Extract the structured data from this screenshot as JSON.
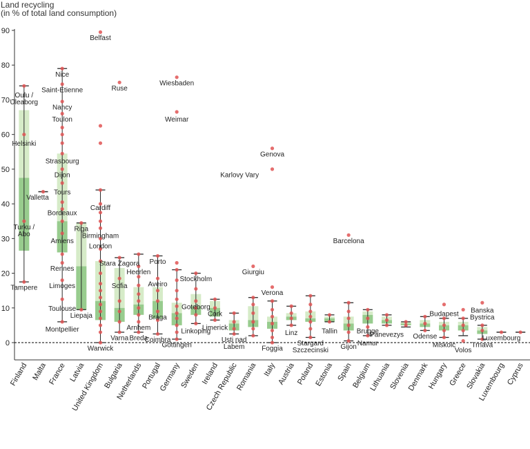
{
  "chart_data": {
    "type": "box",
    "ylabel": [
      "Land recycling",
      "(in % of total land consumption)"
    ],
    "ylim": [
      -5,
      90
    ],
    "yticks": [
      0,
      10,
      20,
      30,
      40,
      50,
      60,
      70,
      80,
      90
    ],
    "categories": [
      "Finland",
      "Malta",
      "France",
      "Latvia",
      "United Kingdom",
      "Bulgaria",
      "Netherlands",
      "Portugal",
      "Germany",
      "Sweden",
      "Ireland",
      "Czech Republic",
      "Romania",
      "Italy",
      "Austria",
      "Poland",
      "Estonia",
      "Spain",
      "Belgium",
      "Lithuania",
      "Slovenia",
      "Denmark",
      "Hungary",
      "Greece",
      "Slovakia",
      "Luxembourg",
      "Cyprus"
    ],
    "boxes": [
      {
        "min": 17.5,
        "q1": 26.5,
        "median": 47.5,
        "q3": 67,
        "max": 74
      },
      {
        "min": 43.5,
        "q1": 43.5,
        "median": 43.5,
        "q3": 43.5,
        "max": 43.5
      },
      {
        "min": 6,
        "q1": 26,
        "median": 35,
        "q3": 54.5,
        "max": 79
      },
      {
        "min": 9.5,
        "q1": 9.5,
        "median": 22,
        "q3": 34.5,
        "max": 34.5
      },
      {
        "min": 0,
        "q1": 6.5,
        "median": 12,
        "q3": 23.5,
        "max": 44
      },
      {
        "min": 3,
        "q1": 6,
        "median": 10,
        "q3": 21.5,
        "max": 24.5
      },
      {
        "min": 3,
        "q1": 8,
        "median": 11,
        "q3": 16,
        "max": 25.5
      },
      {
        "min": 2.5,
        "q1": 7,
        "median": 12,
        "q3": 16,
        "max": 25
      },
      {
        "min": 1,
        "q1": 5,
        "median": 8.5,
        "q3": 11.5,
        "max": 21
      },
      {
        "min": 5.5,
        "q1": 8,
        "median": 10.5,
        "q3": 14,
        "max": 20
      },
      {
        "min": 6.5,
        "q1": 7.5,
        "median": 10,
        "q3": 12,
        "max": 12.5
      },
      {
        "min": 2.5,
        "q1": 3.5,
        "median": 5.5,
        "q3": 6.5,
        "max": 8.5
      },
      {
        "min": 2,
        "q1": 4.5,
        "median": 6.5,
        "q3": 10.5,
        "max": 13
      },
      {
        "min": 0,
        "q1": 4,
        "median": 6,
        "q3": 7.5,
        "max": 12
      },
      {
        "min": 5,
        "q1": 6.5,
        "median": 7.5,
        "q3": 8.5,
        "max": 10.5
      },
      {
        "min": 1.5,
        "q1": 6,
        "median": 7,
        "q3": 9,
        "max": 13.5
      },
      {
        "min": 6,
        "q1": 6,
        "median": 7,
        "q3": 7.5,
        "max": 8
      },
      {
        "min": 0.5,
        "q1": 3.5,
        "median": 5.5,
        "q3": 7.5,
        "max": 11.5
      },
      {
        "min": 2,
        "q1": 5.5,
        "median": 8,
        "q3": 9,
        "max": 9.5
      },
      {
        "min": 5,
        "q1": 5.5,
        "median": 6.5,
        "q3": 7.5,
        "max": 8
      },
      {
        "min": 4.5,
        "q1": 5,
        "median": 5.5,
        "q3": 6,
        "max": 6
      },
      {
        "min": 3.5,
        "q1": 4.5,
        "median": 5.5,
        "q3": 6.5,
        "max": 7.5
      },
      {
        "min": 1.5,
        "q1": 3.5,
        "median": 5,
        "q3": 6,
        "max": 7
      },
      {
        "min": 2,
        "q1": 3.5,
        "median": 5,
        "q3": 6,
        "max": 7
      },
      {
        "min": 1,
        "q1": 2.5,
        "median": 3.5,
        "q3": 4.5,
        "max": 5
      },
      {
        "min": 3,
        "q1": 3,
        "median": 3,
        "q3": 3,
        "max": 3
      },
      {
        "min": 3,
        "q1": 3,
        "median": 3,
        "q3": 3,
        "max": 3
      }
    ],
    "points": [
      {
        "c": 0,
        "v": 74
      },
      {
        "c": 0,
        "v": 60
      },
      {
        "c": 0,
        "v": 35
      },
      {
        "c": 0,
        "v": 17.5
      },
      {
        "c": 1,
        "v": 43.5
      },
      {
        "c": 2,
        "v": 79
      },
      {
        "c": 2,
        "v": 74.5
      },
      {
        "c": 2,
        "v": 69.5
      },
      {
        "c": 2,
        "v": 66
      },
      {
        "c": 2,
        "v": 62
      },
      {
        "c": 2,
        "v": 60
      },
      {
        "c": 2,
        "v": 57.5
      },
      {
        "c": 2,
        "v": 54.5
      },
      {
        "c": 2,
        "v": 50
      },
      {
        "c": 2,
        "v": 46
      },
      {
        "c": 2,
        "v": 40.5
      },
      {
        "c": 2,
        "v": 38.5
      },
      {
        "c": 2,
        "v": 35
      },
      {
        "c": 2,
        "v": 31.5
      },
      {
        "c": 2,
        "v": 25.5
      },
      {
        "c": 2,
        "v": 23
      },
      {
        "c": 2,
        "v": 18
      },
      {
        "c": 2,
        "v": 12.5
      },
      {
        "c": 2,
        "v": 6
      },
      {
        "c": 3,
        "v": 34.5
      },
      {
        "c": 3,
        "v": 9.5
      },
      {
        "c": 4,
        "v": 89.5
      },
      {
        "c": 4,
        "v": 62.5
      },
      {
        "c": 4,
        "v": 57.5
      },
      {
        "c": 4,
        "v": 44
      },
      {
        "c": 4,
        "v": 40
      },
      {
        "c": 4,
        "v": 37.5
      },
      {
        "c": 4,
        "v": 35
      },
      {
        "c": 4,
        "v": 33
      },
      {
        "c": 4,
        "v": 30
      },
      {
        "c": 4,
        "v": 27
      },
      {
        "c": 4,
        "v": 23.5
      },
      {
        "c": 4,
        "v": 20
      },
      {
        "c": 4,
        "v": 17
      },
      {
        "c": 4,
        "v": 15
      },
      {
        "c": 4,
        "v": 13
      },
      {
        "c": 4,
        "v": 11
      },
      {
        "c": 4,
        "v": 9
      },
      {
        "c": 4,
        "v": 7
      },
      {
        "c": 4,
        "v": 5
      },
      {
        "c": 4,
        "v": 3
      },
      {
        "c": 4,
        "v": 0
      },
      {
        "c": 5,
        "v": 75
      },
      {
        "c": 5,
        "v": 24.5
      },
      {
        "c": 5,
        "v": 18.5
      },
      {
        "c": 5,
        "v": 12
      },
      {
        "c": 5,
        "v": 9
      },
      {
        "c": 5,
        "v": 6
      },
      {
        "c": 5,
        "v": 3
      },
      {
        "c": 6,
        "v": 25.5
      },
      {
        "c": 6,
        "v": 22
      },
      {
        "c": 6,
        "v": 19
      },
      {
        "c": 6,
        "v": 16.5
      },
      {
        "c": 6,
        "v": 14
      },
      {
        "c": 6,
        "v": 12
      },
      {
        "c": 6,
        "v": 10
      },
      {
        "c": 6,
        "v": 8
      },
      {
        "c": 6,
        "v": 6
      },
      {
        "c": 6,
        "v": 3
      },
      {
        "c": 7,
        "v": 25
      },
      {
        "c": 7,
        "v": 18.5
      },
      {
        "c": 7,
        "v": 15
      },
      {
        "c": 7,
        "v": 12
      },
      {
        "c": 7,
        "v": 9
      },
      {
        "c": 7,
        "v": 6.5
      },
      {
        "c": 7,
        "v": 2.5
      },
      {
        "c": 8,
        "v": 76.5
      },
      {
        "c": 8,
        "v": 66.5
      },
      {
        "c": 8,
        "v": 23
      },
      {
        "c": 8,
        "v": 21
      },
      {
        "c": 8,
        "v": 18
      },
      {
        "c": 8,
        "v": 15
      },
      {
        "c": 8,
        "v": 12.5
      },
      {
        "c": 8,
        "v": 10.5
      },
      {
        "c": 8,
        "v": 8.5
      },
      {
        "c": 8,
        "v": 7
      },
      {
        "c": 8,
        "v": 5
      },
      {
        "c": 8,
        "v": 3
      },
      {
        "c": 8,
        "v": 1
      },
      {
        "c": 9,
        "v": 20
      },
      {
        "c": 9,
        "v": 15.5
      },
      {
        "c": 9,
        "v": 12
      },
      {
        "c": 9,
        "v": 10
      },
      {
        "c": 9,
        "v": 8
      },
      {
        "c": 9,
        "v": 5.5
      },
      {
        "c": 10,
        "v": 12.5
      },
      {
        "c": 10,
        "v": 10
      },
      {
        "c": 10,
        "v": 6.5
      },
      {
        "c": 11,
        "v": 8.5
      },
      {
        "c": 11,
        "v": 6
      },
      {
        "c": 11,
        "v": 4
      },
      {
        "c": 11,
        "v": 2.5
      },
      {
        "c": 12,
        "v": 22
      },
      {
        "c": 12,
        "v": 13
      },
      {
        "c": 12,
        "v": 11
      },
      {
        "c": 12,
        "v": 8.5
      },
      {
        "c": 12,
        "v": 6
      },
      {
        "c": 12,
        "v": 4
      },
      {
        "c": 12,
        "v": 2
      },
      {
        "c": 13,
        "v": 56
      },
      {
        "c": 13,
        "v": 50
      },
      {
        "c": 13,
        "v": 16
      },
      {
        "c": 13,
        "v": 12
      },
      {
        "c": 13,
        "v": 9.5
      },
      {
        "c": 13,
        "v": 7.5
      },
      {
        "c": 13,
        "v": 5.5
      },
      {
        "c": 13,
        "v": 3.5
      },
      {
        "c": 13,
        "v": 1.5
      },
      {
        "c": 13,
        "v": 0
      },
      {
        "c": 14,
        "v": 10.5
      },
      {
        "c": 14,
        "v": 8.5
      },
      {
        "c": 14,
        "v": 7
      },
      {
        "c": 14,
        "v": 5
      },
      {
        "c": 15,
        "v": 13.5
      },
      {
        "c": 15,
        "v": 11
      },
      {
        "c": 15,
        "v": 9
      },
      {
        "c": 15,
        "v": 7.5
      },
      {
        "c": 15,
        "v": 6
      },
      {
        "c": 15,
        "v": 4
      },
      {
        "c": 15,
        "v": 1.5
      },
      {
        "c": 16,
        "v": 8
      },
      {
        "c": 16,
        "v": 6
      },
      {
        "c": 17,
        "v": 31
      },
      {
        "c": 17,
        "v": 11.5
      },
      {
        "c": 17,
        "v": 9
      },
      {
        "c": 17,
        "v": 7
      },
      {
        "c": 17,
        "v": 5
      },
      {
        "c": 17,
        "v": 3
      },
      {
        "c": 17,
        "v": 0.5
      },
      {
        "c": 18,
        "v": 9.5
      },
      {
        "c": 18,
        "v": 7
      },
      {
        "c": 18,
        "v": 4.5
      },
      {
        "c": 18,
        "v": 2
      },
      {
        "c": 19,
        "v": 8
      },
      {
        "c": 19,
        "v": 6.5
      },
      {
        "c": 19,
        "v": 5
      },
      {
        "c": 20,
        "v": 6
      },
      {
        "c": 20,
        "v": 5
      },
      {
        "c": 21,
        "v": 7.5
      },
      {
        "c": 21,
        "v": 5.5
      },
      {
        "c": 21,
        "v": 3.5
      },
      {
        "c": 22,
        "v": 11
      },
      {
        "c": 22,
        "v": 7
      },
      {
        "c": 22,
        "v": 5
      },
      {
        "c": 22,
        "v": 3.5
      },
      {
        "c": 22,
        "v": 1.5
      },
      {
        "c": 23,
        "v": 9.5
      },
      {
        "c": 23,
        "v": 7
      },
      {
        "c": 23,
        "v": 5
      },
      {
        "c": 23,
        "v": 3.5
      },
      {
        "c": 23,
        "v": 0.5
      },
      {
        "c": 24,
        "v": 11.5
      },
      {
        "c": 24,
        "v": 5
      },
      {
        "c": 24,
        "v": 3.5
      },
      {
        "c": 24,
        "v": 1
      },
      {
        "c": 25,
        "v": 3
      },
      {
        "c": 26,
        "v": 3
      }
    ],
    "annotations": [
      {
        "text": "Belfast",
        "c": 4,
        "v": 88,
        "dx": 0
      },
      {
        "text": "Ruse",
        "c": 5,
        "v": 73.5,
        "dx": 0
      },
      {
        "text": "Wiesbaden",
        "c": 8,
        "v": 75,
        "dx": 0
      },
      {
        "text": "Weimar",
        "c": 8,
        "v": 64.5,
        "dx": 0
      },
      {
        "text": "Genova",
        "c": 13,
        "v": 54.5,
        "dx": 0
      },
      {
        "text": "Karlovy Vary",
        "c": 11,
        "v": 48.5,
        "dx": 8
      },
      {
        "text": "Barcelona",
        "c": 17,
        "v": 29.5,
        "dx": 0
      },
      {
        "text": "Giurgiu",
        "c": 12,
        "v": 20.5,
        "dx": 0
      },
      {
        "text": "Verona",
        "c": 13,
        "v": 14.5,
        "dx": 0
      },
      {
        "text": "Oulu /",
        "c": 0,
        "v": 71.5,
        "dx": 0
      },
      {
        "text": "Uleaborg",
        "c": 0,
        "v": 69.5,
        "dx": 0
      },
      {
        "text": "Helsinki",
        "c": 0,
        "v": 57.5,
        "dx": 0
      },
      {
        "text": "Turku /",
        "c": 0,
        "v": 33.5,
        "dx": 0
      },
      {
        "text": "Abo",
        "c": 0,
        "v": 31.5,
        "dx": 0
      },
      {
        "text": "Tampere",
        "c": 0,
        "v": 16,
        "dx": 0
      },
      {
        "text": "Valletta",
        "c": 1,
        "v": 42,
        "dx": -8
      },
      {
        "text": "Nice",
        "c": 2,
        "v": 77.5,
        "dx": 0
      },
      {
        "text": "Saint-Etienne",
        "c": 2,
        "v": 73,
        "dx": 0
      },
      {
        "text": "Nancy",
        "c": 2,
        "v": 68,
        "dx": 0
      },
      {
        "text": "Toulon",
        "c": 2,
        "v": 64.5,
        "dx": 0
      },
      {
        "text": "Strasbourg",
        "c": 2,
        "v": 52.5,
        "dx": 0
      },
      {
        "text": "Dijon",
        "c": 2,
        "v": 48.5,
        "dx": 0
      },
      {
        "text": "Tours",
        "c": 2,
        "v": 43.5,
        "dx": 0
      },
      {
        "text": "Bordeaux",
        "c": 2,
        "v": 37.5,
        "dx": 0
      },
      {
        "text": "Amiens",
        "c": 2,
        "v": 29.5,
        "dx": 0
      },
      {
        "text": "Rennes",
        "c": 2,
        "v": 21.5,
        "dx": 0
      },
      {
        "text": "Limoges",
        "c": 2,
        "v": 16.5,
        "dx": 0
      },
      {
        "text": "Toulouse",
        "c": 2,
        "v": 10,
        "dx": 0
      },
      {
        "text": "Montpellier",
        "c": 2,
        "v": 4,
        "dx": 0
      },
      {
        "text": "Riga",
        "c": 3,
        "v": 33,
        "dx": 0
      },
      {
        "text": "Liepaja",
        "c": 3,
        "v": 8,
        "dx": 0
      },
      {
        "text": "Cardiff",
        "c": 4,
        "v": 39,
        "dx": 0
      },
      {
        "text": "Birmingham",
        "c": 4,
        "v": 31,
        "dx": 0
      },
      {
        "text": "London",
        "c": 4,
        "v": 28,
        "dx": 0
      },
      {
        "text": "Warwick",
        "c": 4,
        "v": -1.5,
        "dx": 0
      },
      {
        "text": "Stara Zagora",
        "c": 5,
        "v": 23,
        "dx": 0
      },
      {
        "text": "Sofia",
        "c": 5,
        "v": 16.5,
        "dx": 0
      },
      {
        "text": "Varna",
        "c": 5,
        "v": 1.5,
        "dx": 0
      },
      {
        "text": "Heerlen",
        "c": 6,
        "v": 20.5,
        "dx": 0
      },
      {
        "text": "Arnhem",
        "c": 6,
        "v": 4.5,
        "dx": 0
      },
      {
        "text": "Breda",
        "c": 6,
        "v": 1.5,
        "dx": 0
      },
      {
        "text": "Porto",
        "c": 7,
        "v": 23.5,
        "dx": 0
      },
      {
        "text": "Aveiro",
        "c": 7,
        "v": 17,
        "dx": 0
      },
      {
        "text": "Braga",
        "c": 7,
        "v": 7.5,
        "dx": 0
      },
      {
        "text": "Coimbra",
        "c": 7,
        "v": 1,
        "dx": 0
      },
      {
        "text": "Göttingen",
        "c": 8,
        "v": -0.5,
        "dx": 0
      },
      {
        "text": "Stockholm",
        "c": 9,
        "v": 18.5,
        "dx": 0
      },
      {
        "text": "Goteborg",
        "c": 9,
        "v": 10.5,
        "dx": 0
      },
      {
        "text": "Linkoping",
        "c": 9,
        "v": 3.5,
        "dx": 0
      },
      {
        "text": "Cork",
        "c": 10,
        "v": 8.5,
        "dx": 0
      },
      {
        "text": "Limerick",
        "c": 10,
        "v": 4.5,
        "dx": 0
      },
      {
        "text": "Usti nad",
        "c": 11,
        "v": 1,
        "dx": 0
      },
      {
        "text": "Labem",
        "c": 11,
        "v": -1,
        "dx": 0
      },
      {
        "text": "Foggia",
        "c": 13,
        "v": -1.5,
        "dx": 0
      },
      {
        "text": "Linz",
        "c": 14,
        "v": 3,
        "dx": 0
      },
      {
        "text": "Stargard",
        "c": 15,
        "v": 0,
        "dx": 0
      },
      {
        "text": "Szczecinski",
        "c": 15,
        "v": -2,
        "dx": 0
      },
      {
        "text": "Tallin",
        "c": 16,
        "v": 3.5,
        "dx": 0
      },
      {
        "text": "Gijon",
        "c": 17,
        "v": -1,
        "dx": 0
      },
      {
        "text": "Brugge",
        "c": 18,
        "v": 3.5,
        "dx": 0
      },
      {
        "text": "Namur",
        "c": 18,
        "v": 0,
        "dx": 0
      },
      {
        "text": "Panevezys",
        "c": 19,
        "v": 2.5,
        "dx": 0
      },
      {
        "text": "Odense",
        "c": 21,
        "v": 2,
        "dx": 0
      },
      {
        "text": "Budapest",
        "c": 22,
        "v": 8.5,
        "dx": 0
      },
      {
        "text": "Miskolc",
        "c": 22,
        "v": -0.5,
        "dx": 0
      },
      {
        "text": "Volos",
        "c": 23,
        "v": -2,
        "dx": 0
      },
      {
        "text": "Banska",
        "c": 24,
        "v": 9.5,
        "dx": 0
      },
      {
        "text": "Bystrica",
        "c": 24,
        "v": 7.5,
        "dx": 0
      },
      {
        "text": "Trnava",
        "c": 24,
        "v": -0.5,
        "dx": 0
      },
      {
        "text": "Luxembourg",
        "c": 25,
        "v": 1.5,
        "dx": 0
      }
    ],
    "grid": false,
    "zero_line": "dashed",
    "colors": {
      "box_light": "#d6ebc8",
      "box_dark": "#98cc8e",
      "whisker": "#2a2a2a",
      "point": "#e05555",
      "axis": "#333333"
    }
  }
}
